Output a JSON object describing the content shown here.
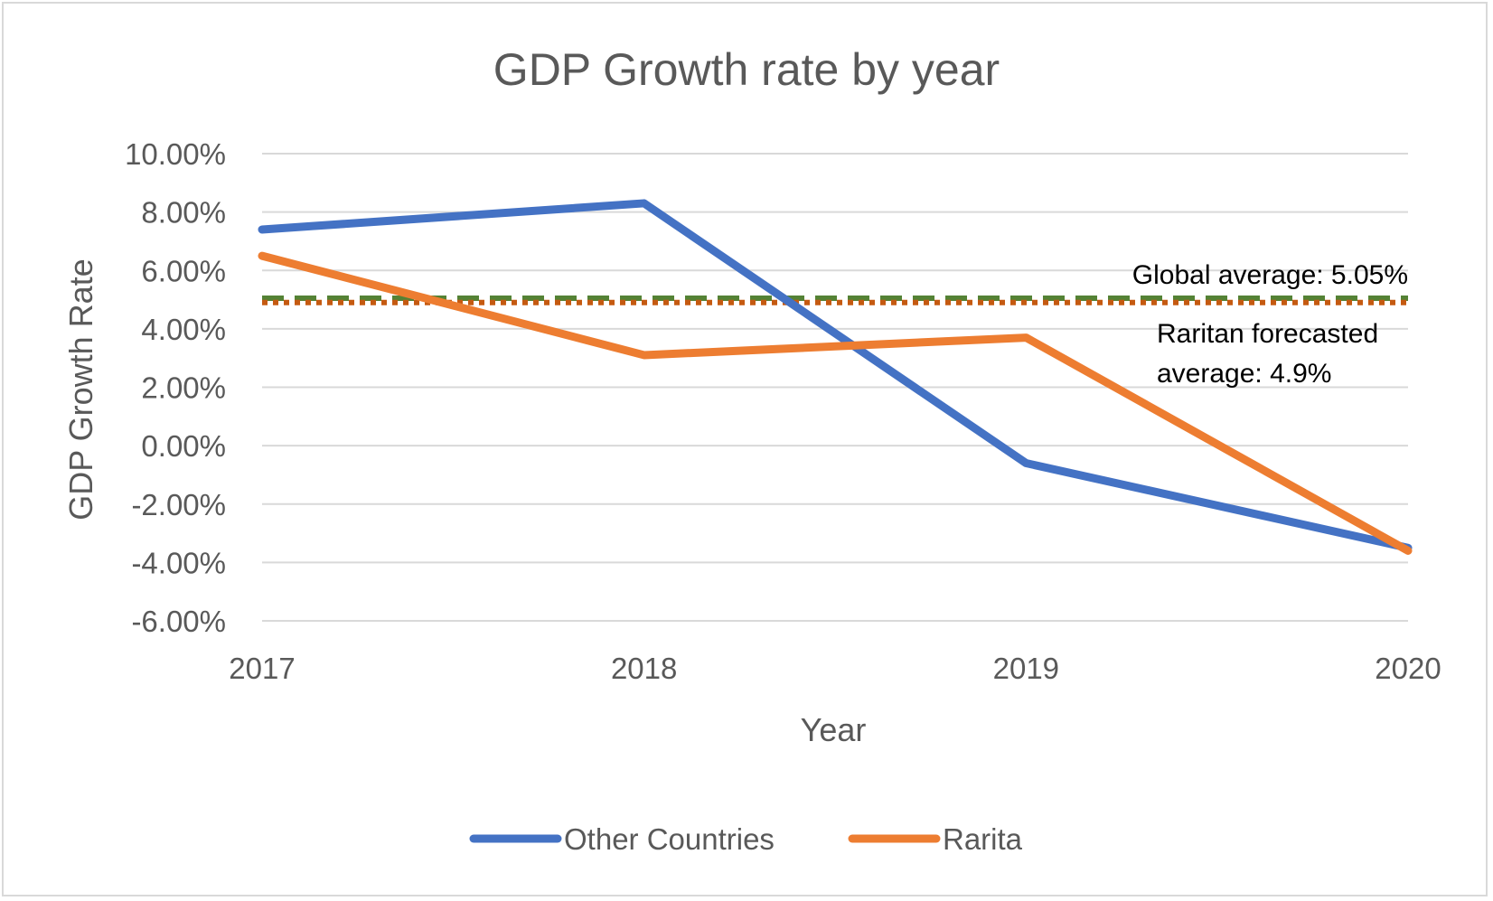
{
  "chart_data": {
    "type": "line",
    "title": "GDP Growth rate by year",
    "xlabel": "Year",
    "ylabel": "GDP Growth Rate",
    "x": [
      "2017",
      "2018",
      "2019",
      "2020"
    ],
    "ylim": [
      -6,
      10
    ],
    "y_ticks": [
      -6,
      -4,
      -2,
      0,
      2,
      4,
      6,
      8,
      10
    ],
    "y_tick_labels": [
      "-6.00%",
      "-4.00%",
      "-2.00%",
      "0.00%",
      "2.00%",
      "4.00%",
      "6.00%",
      "8.00%",
      "10.00%"
    ],
    "grid": true,
    "legend_position": "bottom",
    "series": [
      {
        "name": "Other Countries",
        "values": [
          7.4,
          8.3,
          -0.6,
          -3.5
        ],
        "color": "#4472c4"
      },
      {
        "name": "Rarita",
        "values": [
          6.5,
          3.1,
          3.7,
          -3.6
        ],
        "color": "#ed7d31"
      }
    ],
    "reference_lines": [
      {
        "label": "Global average: 5.05%",
        "value": 5.05,
        "style": "dashed",
        "color": "#548235"
      },
      {
        "label_lines": [
          "Raritan forecasted",
          "average: 4.9%"
        ],
        "value": 4.9,
        "style": "dotted",
        "color": "#c55a11"
      }
    ]
  }
}
